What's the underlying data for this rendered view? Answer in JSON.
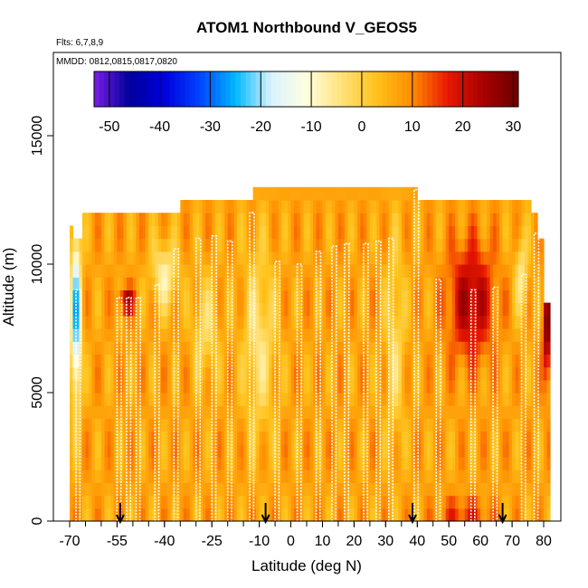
{
  "chart_data": {
    "type": "heatmap",
    "title": "ATOM1 Northbound V_GEOS5",
    "subtitle_flights": "Flts: 6,7,8,9",
    "subtitle_dates": "MMDD: 0812,0815,0817,0820",
    "xlabel": "Latitude (deg N)",
    "ylabel": "Altitude (m)",
    "xlim": [
      -70,
      83
    ],
    "ylim": [
      0,
      17500
    ],
    "x_ticks": [
      -70,
      -55,
      -40,
      -25,
      -10,
      0,
      10,
      20,
      30,
      40,
      50,
      60,
      70,
      80
    ],
    "y_ticks": [
      0,
      5000,
      10000,
      15000
    ],
    "colorbar": {
      "range": [
        -53,
        31
      ],
      "ticks": [
        -50,
        -40,
        -30,
        -20,
        -10,
        0,
        10,
        20,
        30
      ],
      "colors": [
        "#7a1ee8",
        "#00009a",
        "#0000dd",
        "#0044ff",
        "#00b8ff",
        "#d8f2ff",
        "#ffffe0",
        "#ffe27a",
        "#ffc21a",
        "#ff8c00",
        "#e81800",
        "#a80000",
        "#6a0000"
      ]
    },
    "profiles": [
      {
        "lat": -68.0,
        "top": 9000
      },
      {
        "lat": -55.0,
        "top": 8700
      },
      {
        "lat": -52.0,
        "top": 8700
      },
      {
        "lat": -49.0,
        "top": 8700
      },
      {
        "lat": -43.0,
        "top": 9200
      },
      {
        "lat": -37.0,
        "top": 10600
      },
      {
        "lat": -30.0,
        "top": 11000
      },
      {
        "lat": -25.0,
        "top": 11100
      },
      {
        "lat": -20.0,
        "top": 10900
      },
      {
        "lat": -13.0,
        "top": 12000
      },
      {
        "lat": -5.0,
        "top": 10100
      },
      {
        "lat": 2.0,
        "top": 10000
      },
      {
        "lat": 8.0,
        "top": 10500
      },
      {
        "lat": 13.0,
        "top": 10700
      },
      {
        "lat": 17.0,
        "top": 10800
      },
      {
        "lat": 23.0,
        "top": 10800
      },
      {
        "lat": 27.0,
        "top": 10900
      },
      {
        "lat": 31.0,
        "top": 11000
      },
      {
        "lat": 39.0,
        "top": 12900
      },
      {
        "lat": 46.0,
        "top": 9400
      },
      {
        "lat": 57.0,
        "top": 9000
      },
      {
        "lat": 64.0,
        "top": 9100
      },
      {
        "lat": 73.0,
        "top": 9600
      },
      {
        "lat": 77.0,
        "top": 11200
      }
    ],
    "arrows_lat": [
      -54,
      -8,
      38.5,
      67
    ]
  }
}
